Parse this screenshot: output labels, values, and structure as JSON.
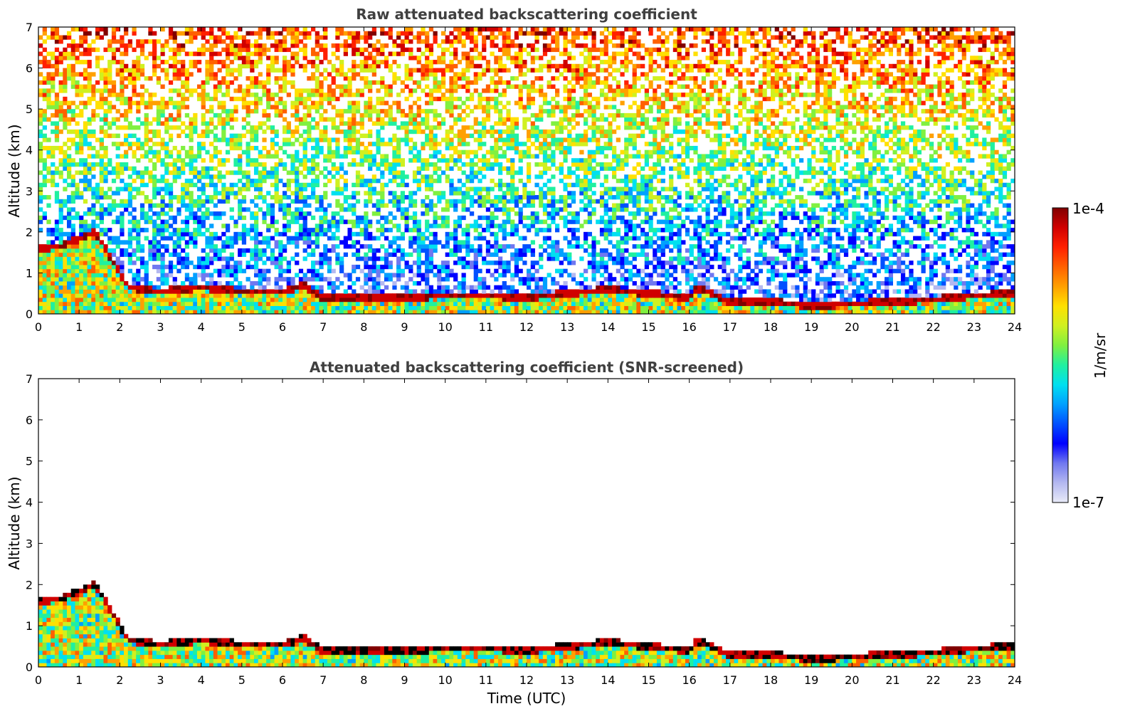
{
  "chart_data": [
    {
      "type": "heatmap",
      "title": "Raw attenuated backscattering coefficient",
      "xlabel": "",
      "ylabel": "Altitude (km)",
      "xlim": [
        0,
        24
      ],
      "ylim": [
        0,
        7
      ],
      "xticks": [
        "0",
        "1",
        "2",
        "3",
        "4",
        "5",
        "6",
        "7",
        "8",
        "9",
        "10",
        "11",
        "12",
        "13",
        "14",
        "15",
        "16",
        "17",
        "18",
        "19",
        "20",
        "21",
        "22",
        "23",
        "24"
      ],
      "yticks": [
        "0",
        "1",
        "2",
        "3",
        "4",
        "5",
        "6",
        "7"
      ],
      "screened": false,
      "boundary_layer_top_km": [
        {
          "t": 0.0,
          "z": 1.6
        },
        {
          "t": 0.5,
          "z": 1.65
        },
        {
          "t": 1.0,
          "z": 1.85
        },
        {
          "t": 1.4,
          "z": 2.0
        },
        {
          "t": 2.2,
          "z": 0.65
        },
        {
          "t": 3.0,
          "z": 0.55
        },
        {
          "t": 4.0,
          "z": 0.65
        },
        {
          "t": 5.0,
          "z": 0.55
        },
        {
          "t": 6.0,
          "z": 0.55
        },
        {
          "t": 6.5,
          "z": 0.7
        },
        {
          "t": 7.0,
          "z": 0.4
        },
        {
          "t": 8.0,
          "z": 0.4
        },
        {
          "t": 9.0,
          "z": 0.4
        },
        {
          "t": 10.0,
          "z": 0.45
        },
        {
          "t": 11.0,
          "z": 0.45
        },
        {
          "t": 12.0,
          "z": 0.4
        },
        {
          "t": 13.0,
          "z": 0.5
        },
        {
          "t": 14.0,
          "z": 0.6
        },
        {
          "t": 15.0,
          "z": 0.5
        },
        {
          "t": 16.0,
          "z": 0.4
        },
        {
          "t": 16.2,
          "z": 0.65
        },
        {
          "t": 17.0,
          "z": 0.3
        },
        {
          "t": 18.0,
          "z": 0.3
        },
        {
          "t": 19.0,
          "z": 0.2
        },
        {
          "t": 20.0,
          "z": 0.25
        },
        {
          "t": 21.0,
          "z": 0.3
        },
        {
          "t": 22.0,
          "z": 0.35
        },
        {
          "t": 23.0,
          "z": 0.45
        },
        {
          "t": 24.0,
          "z": 0.5
        }
      ]
    },
    {
      "type": "heatmap",
      "title": "Attenuated backscattering coefficient (SNR-screened)",
      "xlabel": "Time (UTC)",
      "ylabel": "Altitude (km)",
      "xlim": [
        0,
        24
      ],
      "ylim": [
        0,
        7
      ],
      "xticks": [
        "0",
        "1",
        "2",
        "3",
        "4",
        "5",
        "6",
        "7",
        "8",
        "9",
        "10",
        "11",
        "12",
        "13",
        "14",
        "15",
        "16",
        "17",
        "18",
        "19",
        "20",
        "21",
        "22",
        "23",
        "24"
      ],
      "yticks": [
        "0",
        "1",
        "2",
        "3",
        "4",
        "5",
        "6",
        "7"
      ],
      "screened": true
    }
  ],
  "colorbar": {
    "label": "1/m/sr",
    "max_label": "1e-4",
    "min_label": "1e-7",
    "scale": "log",
    "range": [
      1e-07,
      0.0001
    ],
    "colors": [
      "#e8eaf8",
      "#b4b8f0",
      "#7078f0",
      "#0000ff",
      "#0050ff",
      "#00a0ff",
      "#00e0f0",
      "#20f0a0",
      "#80f040",
      "#d0f020",
      "#ffe000",
      "#ffa000",
      "#ff6000",
      "#ff2000",
      "#d00000",
      "#800000"
    ]
  }
}
